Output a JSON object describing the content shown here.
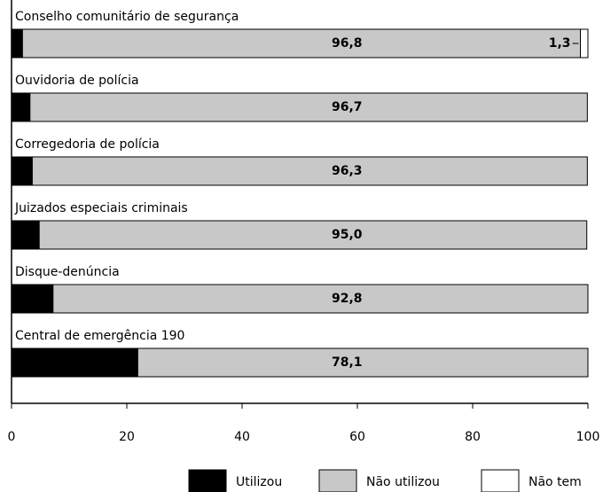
{
  "chart_data": {
    "type": "stacked-bar-horizontal",
    "categories": [
      "Conselho comunitário de segurança",
      "Ouvidoria de polícia",
      "Corregedoria de polícia",
      "Juizados especiais criminais",
      "Disque-denúncia",
      "Central de emergência 190"
    ],
    "series": [
      {
        "name": "Utilizou",
        "color": "#000000",
        "values": [
          1.9,
          3.2,
          3.6,
          4.8,
          7.2,
          21.9
        ],
        "value_labels": [
          "1,9",
          "3,2",
          "3,6",
          "4,8",
          "7,2",
          "21,9"
        ]
      },
      {
        "name": "Não utilizou",
        "color": "#c8c8c8",
        "values": [
          96.8,
          96.7,
          96.3,
          95.0,
          92.8,
          78.1
        ],
        "value_labels": [
          "96,8",
          "96,7",
          "96,3",
          "95,0",
          "92,8",
          "78,1"
        ]
      },
      {
        "name": "Não tem",
        "color": "#ffffff",
        "values": [
          1.3,
          null,
          null,
          null,
          null,
          null
        ],
        "value_labels": [
          "1,3",
          null,
          null,
          null,
          null,
          null
        ]
      }
    ],
    "xlim": [
      0,
      100
    ],
    "xticks": [
      0,
      20,
      40,
      60,
      80,
      100
    ],
    "legend": "bottom"
  }
}
